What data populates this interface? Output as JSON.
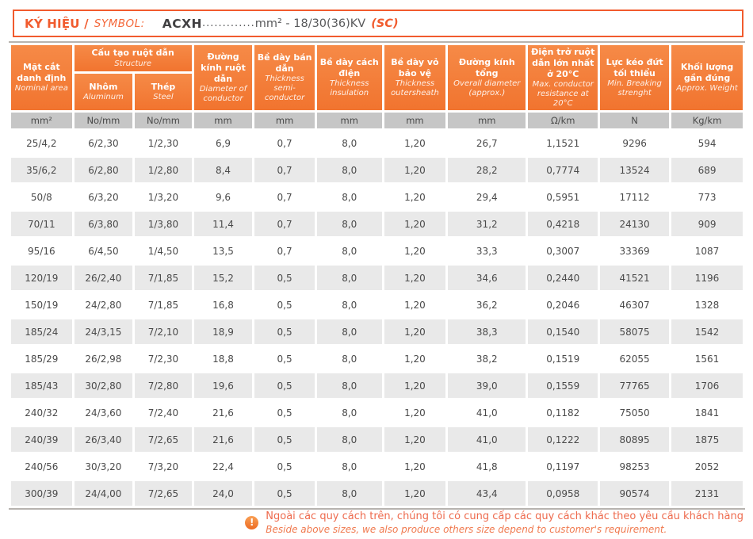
{
  "title": {
    "label_vi": "KÝ HIỆU /",
    "label_en": "SYMBOL:",
    "code": "ACXH",
    "dots": ".............",
    "spec": "mm² - 18/30(36)KV",
    "suffix": "(SC)"
  },
  "table": {
    "col1": {
      "vi": "Mặt cắt danh định",
      "en": "Nominal area"
    },
    "group": {
      "vi": "Cấu tạo ruột dẫn",
      "en": "Structure"
    },
    "sub": [
      {
        "vi": "Nhôm",
        "en": "Aluminum"
      },
      {
        "vi": "Thép",
        "en": "Steel"
      }
    ],
    "cols": [
      {
        "vi": "Đường kính ruột dẫn",
        "en": "Diameter of conductor"
      },
      {
        "vi": "Bề dày bán dẫn",
        "en": "Thickness semi-conductor"
      },
      {
        "vi": "Bề dày cách điện",
        "en": "Thickness insulation"
      },
      {
        "vi": "Bề dày vỏ bảo vệ",
        "en": "Thickness outersheath"
      },
      {
        "vi": "Đường kính tổng",
        "en": "Overall diameter (approx.)"
      },
      {
        "vi": "Điện trở ruột dẫn lớn nhất ở 20°C",
        "en": "Max. conductor resistance at 20°C"
      },
      {
        "vi": "Lực kéo đứt tối thiểu",
        "en": "Min. Breaking strenght"
      },
      {
        "vi": "Khối lượng gần đúng",
        "en": "Approx. Weight"
      }
    ],
    "units": [
      "mm²",
      "No/mm",
      "No/mm",
      "mm",
      "mm",
      "mm",
      "mm",
      "mm",
      "Ω/km",
      "N",
      "Kg/km"
    ],
    "rows": [
      [
        "25/4,2",
        "6/2,30",
        "1/2,30",
        "6,9",
        "0,7",
        "8,0",
        "1,20",
        "26,7",
        "1,1521",
        "9296",
        "594"
      ],
      [
        "35/6,2",
        "6/2,80",
        "1/2,80",
        "8,4",
        "0,7",
        "8,0",
        "1,20",
        "28,2",
        "0,7774",
        "13524",
        "689"
      ],
      [
        "50/8",
        "6/3,20",
        "1/3,20",
        "9,6",
        "0,7",
        "8,0",
        "1,20",
        "29,4",
        "0,5951",
        "17112",
        "773"
      ],
      [
        "70/11",
        "6/3,80",
        "1/3,80",
        "11,4",
        "0,7",
        "8,0",
        "1,20",
        "31,2",
        "0,4218",
        "24130",
        "909"
      ],
      [
        "95/16",
        "6/4,50",
        "1/4,50",
        "13,5",
        "0,7",
        "8,0",
        "1,20",
        "33,3",
        "0,3007",
        "33369",
        "1087"
      ],
      [
        "120/19",
        "26/2,40",
        "7/1,85",
        "15,2",
        "0,5",
        "8,0",
        "1,20",
        "34,6",
        "0,2440",
        "41521",
        "1196"
      ],
      [
        "150/19",
        "24/2,80",
        "7/1,85",
        "16,8",
        "0,5",
        "8,0",
        "1,20",
        "36,2",
        "0,2046",
        "46307",
        "1328"
      ],
      [
        "185/24",
        "24/3,15",
        "7/2,10",
        "18,9",
        "0,5",
        "8,0",
        "1,20",
        "38,3",
        "0,1540",
        "58075",
        "1542"
      ],
      [
        "185/29",
        "26/2,98",
        "7/2,30",
        "18,8",
        "0,5",
        "8,0",
        "1,20",
        "38,2",
        "0,1519",
        "62055",
        "1561"
      ],
      [
        "185/43",
        "30/2,80",
        "7/2,80",
        "19,6",
        "0,5",
        "8,0",
        "1,20",
        "39,0",
        "0,1559",
        "77765",
        "1706"
      ],
      [
        "240/32",
        "24/3,60",
        "7/2,40",
        "21,6",
        "0,5",
        "8,0",
        "1,20",
        "41,0",
        "0,1182",
        "75050",
        "1841"
      ],
      [
        "240/39",
        "26/3,40",
        "7/2,65",
        "21,6",
        "0,5",
        "8,0",
        "1,20",
        "41,0",
        "0,1222",
        "80895",
        "1875"
      ],
      [
        "240/56",
        "30/3,20",
        "7/3,20",
        "22,4",
        "0,5",
        "8,0",
        "1,20",
        "41,8",
        "0,1197",
        "98253",
        "2052"
      ],
      [
        "300/39",
        "24/4,00",
        "7/2,65",
        "24,0",
        "0,5",
        "8,0",
        "1,20",
        "43,4",
        "0,0958",
        "90574",
        "2131"
      ]
    ]
  },
  "footer": {
    "icon": "!",
    "vi": "Ngoài các quy cách trên, chúng tôi có cung cấp các quy cách khác theo yêu cầu khách hàng",
    "en": "Beside above sizes, we also produce others size depend to customer's requirement."
  },
  "colors": {
    "accent": "#f15b2e",
    "header_orange": "#f1742f",
    "unit_gray": "#c6c6c6",
    "row_stripe": "#e9e9e9",
    "note_orange": "#ee6a4d",
    "text_dark": "#4a4a4a"
  }
}
